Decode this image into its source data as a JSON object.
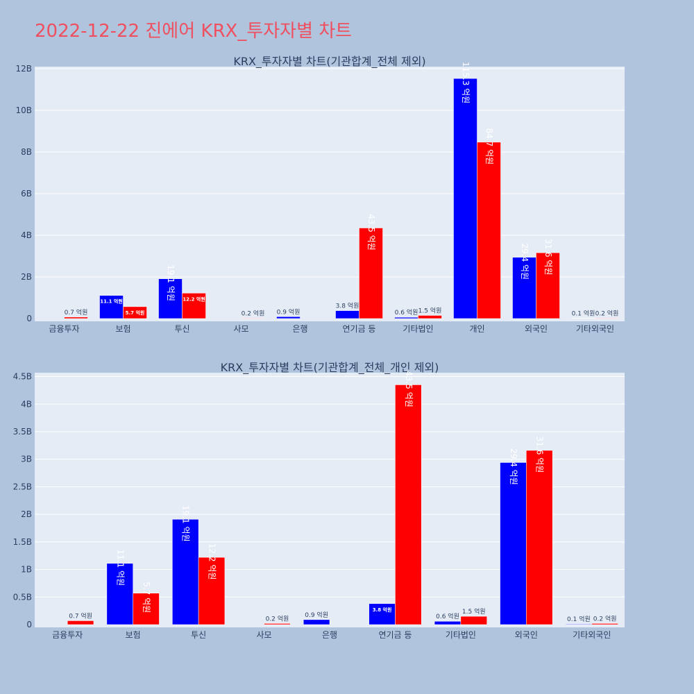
{
  "page_title": "2022-12-22 진에어 KRX_투자자별 차트",
  "colors": {
    "background": "#b0c4de",
    "plot_bg": "#e5ecf6",
    "title": "#ef4f5e",
    "buy": "#0000ff",
    "sell": "#ff0000"
  },
  "chart_data": [
    {
      "type": "bar",
      "title": "KRX_투자자별 차트(기관합계_전체 제외)",
      "categories": [
        "금융투자",
        "보험",
        "투신",
        "사모",
        "은행",
        "연기금 등",
        "기타법인",
        "개인",
        "외국인",
        "기타외국인"
      ],
      "series": [
        {
          "color": "#0000ff",
          "values": [
            0,
            1.11,
            1.91,
            0,
            0.09,
            0.38,
            0.06,
            11.53,
            2.94,
            0.01
          ],
          "labels": [
            "",
            "11.1 억원",
            "19.1 억원",
            "",
            "0.9 억원",
            "3.8 억원",
            "0.6 억원",
            "115.3 억원",
            "29.4 억원",
            "0.1 억원"
          ]
        },
        {
          "color": "#ff0000",
          "values": [
            0.07,
            0.57,
            1.22,
            0.02,
            0,
            4.35,
            0.15,
            8.47,
            3.16,
            0.02
          ],
          "labels": [
            "0.7 억원",
            "5.7 억원",
            "12.2 억원",
            "0.2 억원",
            "",
            "43.5 억원",
            "1.5 억원",
            "84.7 억원",
            "31.6 억원",
            "0.2 억원"
          ]
        }
      ],
      "yunit": "B",
      "ylim": [
        0,
        12.1
      ],
      "yticks": [
        0,
        2,
        4,
        6,
        8,
        10,
        12
      ],
      "ytick_labels": [
        "0",
        "2B",
        "4B",
        "6B",
        "8B",
        "10B",
        "12B"
      ],
      "grid": true
    },
    {
      "type": "bar",
      "title": "KRX_투자자별 차트(기관합계_전체_개인 제외)",
      "categories": [
        "금융투자",
        "보험",
        "투신",
        "사모",
        "은행",
        "연기금 등",
        "기타법인",
        "외국인",
        "기타외국인"
      ],
      "series": [
        {
          "color": "#0000ff",
          "values": [
            0,
            1.11,
            1.91,
            0,
            0.09,
            0.38,
            0.06,
            2.94,
            0.01
          ],
          "labels": [
            "",
            "11.1 억원",
            "19.1 억원",
            "",
            "0.9 억원",
            "3.8 억원",
            "0.6 억원",
            "29.4 억원",
            "0.1 억원"
          ]
        },
        {
          "color": "#ff0000",
          "values": [
            0.07,
            0.57,
            1.22,
            0.02,
            0,
            4.35,
            0.15,
            3.16,
            0.02
          ],
          "labels": [
            "0.7 억원",
            "5.7 억원",
            "12.2 억원",
            "0.2 억원",
            "",
            "43.5 억원",
            "1.5 억원",
            "31.6 억원",
            "0.2 억원"
          ]
        }
      ],
      "yunit": "B",
      "ylim": [
        0,
        4.57
      ],
      "yticks": [
        0,
        0.5,
        1,
        1.5,
        2,
        2.5,
        3,
        3.5,
        4,
        4.5
      ],
      "ytick_labels": [
        "0",
        "0.5B",
        "1B",
        "1.5B",
        "2B",
        "2.5B",
        "3B",
        "3.5B",
        "4B",
        "4.5B"
      ],
      "grid": true
    }
  ]
}
